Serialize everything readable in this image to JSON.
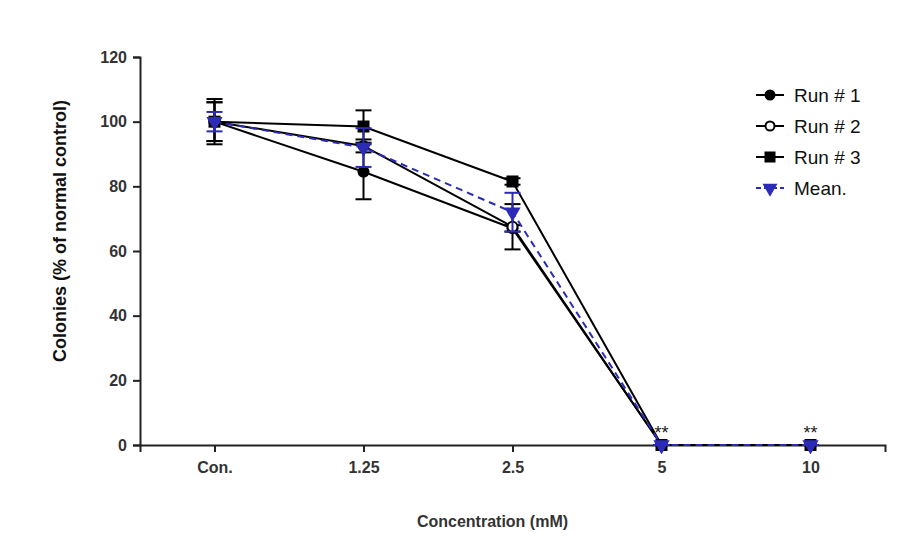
{
  "chart_data": {
    "type": "line",
    "x_label": "Concentration (mM)",
    "y_label": "Colonies (% of normal control)",
    "categories": [
      "Con.",
      "1.25",
      "2.5",
      "5",
      "10"
    ],
    "ylim": [
      0,
      120
    ],
    "yticks": [
      0,
      20,
      40,
      60,
      80,
      100,
      120
    ],
    "legend": "upper right",
    "series": [
      {
        "name": "Run # 1",
        "color": "#000000",
        "marker": "circle",
        "line_style": "solid",
        "values": [
          100,
          84.5,
          67,
          0,
          0
        ],
        "errors": [
          7,
          8.5,
          1,
          0,
          0
        ]
      },
      {
        "name": "Run # 2",
        "color": "#000000",
        "marker": "circle-open",
        "line_style": "solid",
        "values": [
          100,
          92.5,
          67.5,
          0,
          0
        ],
        "errors": [
          6,
          2,
          7,
          0,
          0
        ]
      },
      {
        "name": "Run # 3",
        "color": "#000000",
        "marker": "square",
        "line_style": "solid",
        "values": [
          100,
          98.5,
          81.5,
          0,
          0
        ],
        "errors": [
          6,
          5,
          1,
          0,
          0
        ]
      },
      {
        "name": "Mean.",
        "color": "#2b2bb8",
        "marker": "triangle-down",
        "line_style": "dashed",
        "values": [
          100,
          92,
          72,
          0,
          0
        ],
        "errors": [
          3,
          6,
          6,
          0,
          0
        ]
      }
    ],
    "annotations": [
      {
        "text": "**",
        "category": "5"
      },
      {
        "text": "**",
        "category": "10"
      }
    ]
  }
}
